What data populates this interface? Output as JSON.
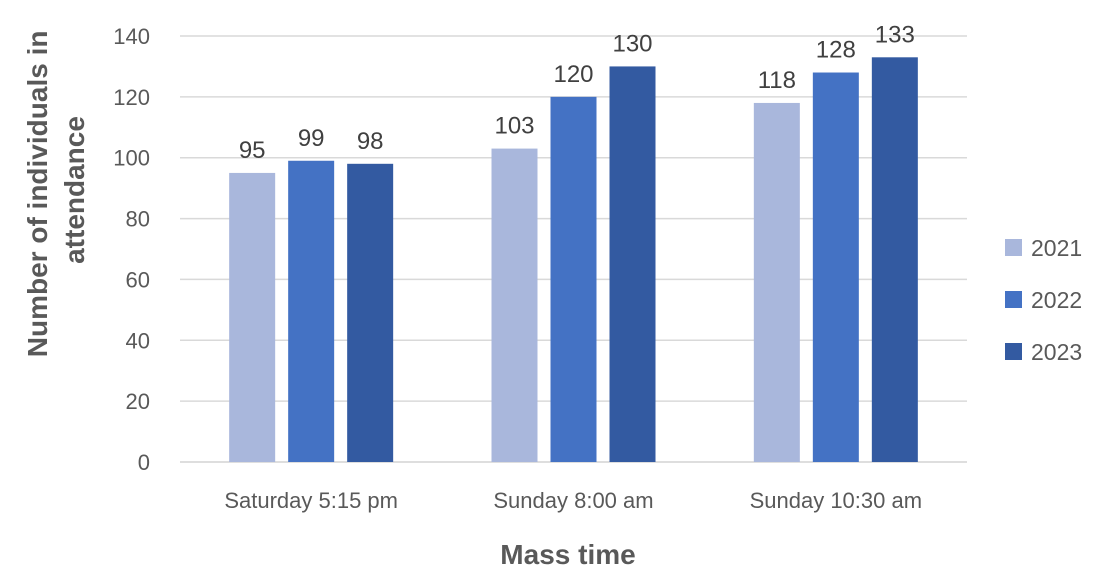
{
  "chart_data": {
    "type": "bar",
    "categories": [
      "Saturday 5:15 pm",
      "Sunday 8:00 am",
      "Sunday 10:30 am"
    ],
    "series": [
      {
        "name": "2021",
        "values": [
          95,
          103,
          118
        ],
        "color": "#a9b7dc"
      },
      {
        "name": "2022",
        "values": [
          99,
          120,
          128
        ],
        "color": "#4472c4"
      },
      {
        "name": "2023",
        "values": [
          98,
          130,
          133
        ],
        "color": "#335aa1"
      }
    ],
    "title": "",
    "xlabel": "Mass time",
    "ylabel_lines": [
      "Number of individuals in",
      "attendance"
    ],
    "ylim": [
      0,
      140
    ],
    "yticks": [
      0,
      20,
      40,
      60,
      80,
      100,
      120,
      140
    ],
    "grid": true,
    "legend_position": "right"
  }
}
